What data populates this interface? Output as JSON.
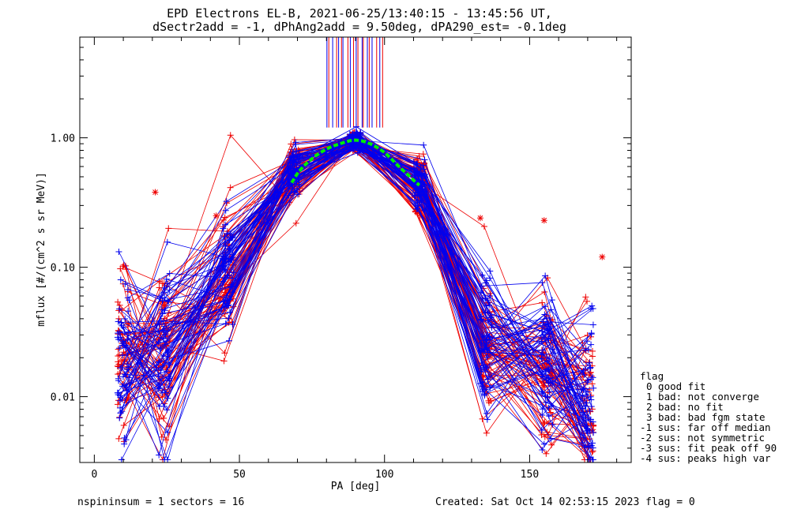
{
  "title_line1": "EPD Electrons EL-B, 2021-06-25/13:40:15 - 13:45:56 UT,",
  "title_line2": "dSectr2add = -1, dPhAng2add = 9.50deg, dPA290_est=  -0.1deg",
  "footer": {
    "left": "nspininsum =  1  sectors = 16",
    "right": "Created: Sat Oct 14 02:53:15 2023   flag = 0"
  },
  "legend": {
    "title": "flag",
    "items": [
      "0 good fit",
      "1 bad: not converge",
      "2 bad: no fit",
      "3 bad: bad fgm state",
      "-1 sus: far off median",
      "-2 sus: not symmetric",
      "-3 sus: fit peak off 90",
      "-4 sus: peaks high var"
    ]
  },
  "colors": {
    "series_red": "#ee0000",
    "series_blue": "#0000ee",
    "fit_green": "#00ee00",
    "axis": "#000000"
  },
  "chart_data": {
    "type": "line",
    "xlabel": "PA [deg]",
    "ylabel": "mflux [#/(cm^2 s sr MeV)]",
    "xlim": [
      -5,
      185
    ],
    "ylim": [
      0.0031,
      6.0
    ],
    "yscale": "log",
    "x_ticks": [
      0,
      50,
      100,
      150
    ],
    "x_tick_labels": [
      "0",
      "50",
      "100",
      "150"
    ],
    "y_ticks": [
      0.01,
      0.1,
      1.0
    ],
    "y_tick_labels": [
      "0.01",
      "0.10",
      "1.00"
    ],
    "grid": false,
    "pa_bins": [
      10,
      24,
      46,
      69,
      90,
      112,
      135,
      156,
      170
    ],
    "median_profile": [
      0.02,
      0.022,
      0.09,
      0.55,
      0.95,
      0.45,
      0.025,
      0.018,
      0.007
    ],
    "n_spectra_per_color": 60,
    "fit_curve": {
      "x": [
        68,
        70,
        72,
        74,
        76,
        78,
        80,
        82,
        84,
        86,
        88,
        90,
        92,
        94,
        96,
        98,
        100,
        102,
        104,
        106,
        108,
        110,
        112
      ],
      "y": [
        0.45,
        0.53,
        0.6,
        0.66,
        0.72,
        0.77,
        0.82,
        0.86,
        0.89,
        0.92,
        0.95,
        0.96,
        0.95,
        0.92,
        0.88,
        0.83,
        0.77,
        0.7,
        0.63,
        0.57,
        0.52,
        0.47,
        0.43
      ]
    },
    "peak_marker_x": [
      80,
      81,
      82,
      83,
      84,
      85,
      86,
      87,
      88,
      89,
      90,
      91,
      92,
      93,
      94,
      95,
      96,
      97,
      98,
      99
    ]
  }
}
